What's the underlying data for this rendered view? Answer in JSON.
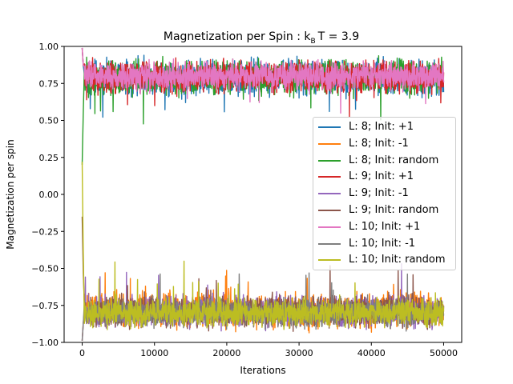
{
  "chart_data": {
    "type": "line",
    "title": "Magnetization per Spin : k",
    "title_sub": "B",
    "title_tail": "T = 3.9",
    "xlabel": "Iterations",
    "ylabel": "Magnetization per spin",
    "xlim": [
      -2500,
      52500
    ],
    "ylim": [
      -1.0,
      1.0
    ],
    "xticks": [
      0,
      10000,
      20000,
      30000,
      40000,
      50000
    ],
    "xtick_labels": [
      "0",
      "10000",
      "20000",
      "30000",
      "40000",
      "50000"
    ],
    "yticks": [
      -1.0,
      -0.75,
      -0.5,
      -0.25,
      0.0,
      0.25,
      0.5,
      0.75,
      1.0
    ],
    "ytick_labels": [
      "−1.00",
      "−0.75",
      "−0.50",
      "−0.25",
      "0.00",
      "0.25",
      "0.50",
      "0.75",
      "1.00"
    ],
    "grid": false,
    "legend_position": "center-right",
    "series": [
      {
        "name": "L: 8; Init: +1",
        "color": "#1f77b4",
        "start": 0.99,
        "mean": 0.79,
        "spread": 0.1
      },
      {
        "name": "L: 8; Init: -1",
        "color": "#ff7f0e",
        "start": -0.99,
        "mean": -0.78,
        "spread": 0.1
      },
      {
        "name": "L: 8; Init: random",
        "color": "#2ca02c",
        "start": 0.2,
        "mean": 0.79,
        "spread": 0.1
      },
      {
        "name": "L: 9; Init: +1",
        "color": "#d62728",
        "start": 0.99,
        "mean": 0.79,
        "spread": 0.09
      },
      {
        "name": "L: 9; Init: -1",
        "color": "#9467bd",
        "start": -0.99,
        "mean": -0.79,
        "spread": 0.09
      },
      {
        "name": "L: 9; Init: random",
        "color": "#8c564b",
        "start": -0.15,
        "mean": -0.79,
        "spread": 0.09
      },
      {
        "name": "L: 10; Init: +1",
        "color": "#e377c2",
        "start": 0.99,
        "mean": 0.8,
        "spread": 0.08
      },
      {
        "name": "L: 10; Init: -1",
        "color": "#7f7f7f",
        "start": -0.99,
        "mean": -0.8,
        "spread": 0.08
      },
      {
        "name": "L: 10; Init: random",
        "color": "#bcbd22",
        "start": 0.22,
        "mean": -0.8,
        "spread": 0.08
      }
    ]
  }
}
